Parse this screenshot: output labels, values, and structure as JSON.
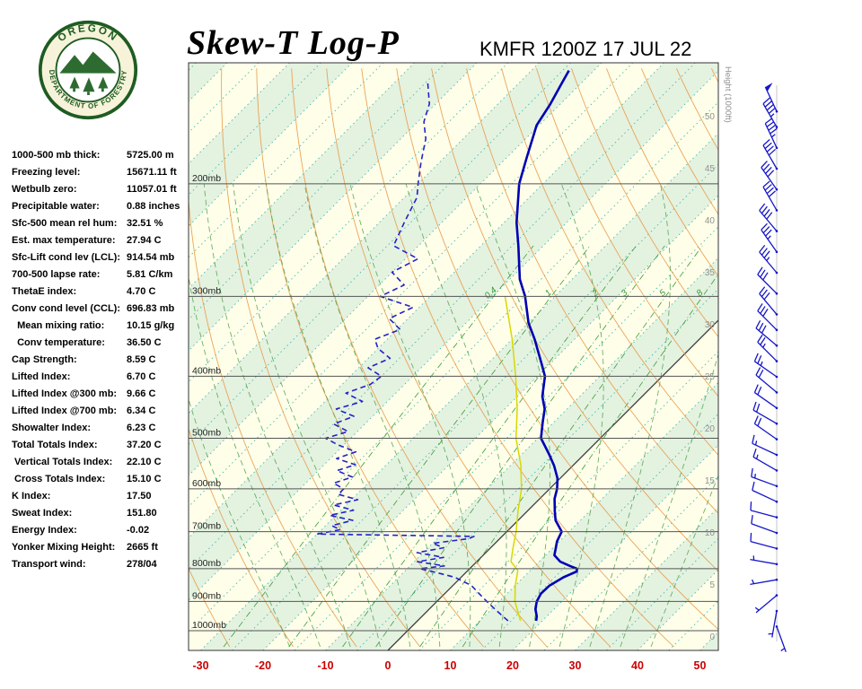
{
  "header": {
    "title": "Skew-T Log-P",
    "station_time": "KMFR 1200Z 17 JUL 22"
  },
  "logo": {
    "top_text": "OREGON",
    "bottom_text": "DEPARTMENT OF FORESTRY"
  },
  "stats": [
    {
      "label": "1000-500 mb thick:",
      "value": "5725.00 m"
    },
    {
      "label": "Freezing level:",
      "value": "15671.11 ft"
    },
    {
      "label": "Wetbulb zero:",
      "value": "11057.01 ft"
    },
    {
      "label": "Precipitable water:",
      "value": "0.88 inches"
    },
    {
      "label": "Sfc-500 mean rel hum:",
      "value": "32.51 %"
    },
    {
      "label": "Est. max temperature:",
      "value": "27.94 C"
    },
    {
      "label": "Sfc-Lift cond lev (LCL):",
      "value": "914.54 mb"
    },
    {
      "label": "700-500 lapse rate:",
      "value": "5.81 C/km"
    },
    {
      "label": "ThetaE index:",
      "value": "4.70 C"
    },
    {
      "label": "Conv cond level (CCL):",
      "value": "696.83 mb"
    },
    {
      "label": "  Mean mixing ratio:",
      "value": "10.15 g/kg"
    },
    {
      "label": "  Conv temperature:",
      "value": "36.50 C"
    },
    {
      "label": "Cap Strength:",
      "value": "8.59 C"
    },
    {
      "label": "Lifted Index:",
      "value": "6.70 C"
    },
    {
      "label": "Lifted Index @300 mb:",
      "value": "9.66 C"
    },
    {
      "label": "Lifted Index @700 mb:",
      "value": "6.34 C"
    },
    {
      "label": "Showalter Index:",
      "value": "6.23 C"
    },
    {
      "label": "Total Totals Index:",
      "value": "37.20 C"
    },
    {
      "label": " Vertical Totals Index:",
      "value": "22.10 C"
    },
    {
      "label": " Cross Totals Index:",
      "value": "15.10 C"
    },
    {
      "label": "K Index:",
      "value": "17.50"
    },
    {
      "label": "Sweat Index:",
      "value": "151.80"
    },
    {
      "label": "Energy Index:",
      "value": "-0.02"
    },
    {
      "label": "Yonker Mixing Height:",
      "value": "2665 ft"
    },
    {
      "label": "Transport wind:",
      "value": "278/04"
    }
  ],
  "chart_data": {
    "type": "skewt-log-p",
    "title": "Skew-T Log-P",
    "station": "KMFR",
    "valid": "1200Z 17 JUL 22",
    "x_axis": {
      "ticks": [
        -30,
        -20,
        -10,
        0,
        10,
        20,
        30,
        40,
        50
      ],
      "unit": "C"
    },
    "pressure_levels": [
      200,
      300,
      400,
      500,
      600,
      700,
      800,
      900,
      1000
    ],
    "pressure_label_suffix": "mb",
    "height_scale": {
      "title": "Height (1000ft)",
      "ticks": [
        0,
        5,
        10,
        15,
        20,
        25,
        30,
        35,
        40,
        45,
        50
      ]
    },
    "mixing_ratio_labels": [
      0.4,
      1,
      2,
      3,
      5,
      8
    ],
    "series": [
      {
        "name": "temperature",
        "color": "#0000b4",
        "width": 2.6,
        "dash": "",
        "points": [
          [
            965,
            19
          ],
          [
            950,
            18.4
          ],
          [
            925,
            17
          ],
          [
            900,
            16
          ],
          [
            875,
            15.4
          ],
          [
            850,
            15.5
          ],
          [
            825,
            16.4
          ],
          [
            808,
            17.6
          ],
          [
            800,
            17.2
          ],
          [
            792,
            15.6
          ],
          [
            780,
            13.4
          ],
          [
            762,
            11.4
          ],
          [
            745,
            10.6
          ],
          [
            725,
            9.6
          ],
          [
            700,
            8.8
          ],
          [
            672,
            6
          ],
          [
            650,
            4.4
          ],
          [
            622,
            2.4
          ],
          [
            600,
            1.2
          ],
          [
            578,
            -0.4
          ],
          [
            552,
            -3
          ],
          [
            530,
            -5.6
          ],
          [
            500,
            -9.5
          ],
          [
            472,
            -11.8
          ],
          [
            450,
            -13.6
          ],
          [
            430,
            -16
          ],
          [
            400,
            -18.8
          ],
          [
            382,
            -21.4
          ],
          [
            350,
            -26.4
          ],
          [
            330,
            -30
          ],
          [
            300,
            -34.8
          ],
          [
            282,
            -38.4
          ],
          [
            250,
            -44
          ],
          [
            230,
            -48
          ],
          [
            200,
            -53.8
          ],
          [
            182,
            -56.8
          ],
          [
            162,
            -60.4
          ],
          [
            150,
            -61.6
          ],
          [
            140,
            -63
          ],
          [
            133,
            -64
          ]
        ]
      },
      {
        "name": "dewpoint",
        "color": "#2222c8",
        "width": 1.6,
        "dash": "6,4",
        "points": [
          [
            965,
            14.5
          ],
          [
            950,
            13
          ],
          [
            925,
            10.5
          ],
          [
            900,
            8
          ],
          [
            875,
            5.5
          ],
          [
            850,
            3
          ],
          [
            825,
            -1
          ],
          [
            810,
            -5
          ],
          [
            800,
            -8
          ],
          [
            792,
            -4.5
          ],
          [
            780,
            -9.5
          ],
          [
            768,
            -6
          ],
          [
            755,
            -11
          ],
          [
            742,
            -7.5
          ],
          [
            730,
            -10
          ],
          [
            718,
            -5
          ],
          [
            712,
            -4.5
          ],
          [
            706,
            -30
          ],
          [
            695,
            -27
          ],
          [
            685,
            -29
          ],
          [
            672,
            -26.5
          ],
          [
            660,
            -31
          ],
          [
            648,
            -28
          ],
          [
            636,
            -32
          ],
          [
            624,
            -29
          ],
          [
            612,
            -33
          ],
          [
            600,
            -33
          ],
          [
            588,
            -35.5
          ],
          [
            575,
            -33.5
          ],
          [
            562,
            -37
          ],
          [
            550,
            -35
          ],
          [
            538,
            -39
          ],
          [
            525,
            -37
          ],
          [
            512,
            -41
          ],
          [
            500,
            -44
          ],
          [
            488,
            -41.5
          ],
          [
            475,
            -45
          ],
          [
            462,
            -43
          ],
          [
            450,
            -47
          ],
          [
            438,
            -44
          ],
          [
            425,
            -48
          ],
          [
            412,
            -45.5
          ],
          [
            400,
            -45
          ],
          [
            388,
            -48.5
          ],
          [
            375,
            -46.5
          ],
          [
            362,
            -50
          ],
          [
            350,
            -52
          ],
          [
            338,
            -49.5
          ],
          [
            325,
            -53
          ],
          [
            312,
            -51
          ],
          [
            300,
            -58
          ],
          [
            288,
            -56
          ],
          [
            275,
            -60
          ],
          [
            262,
            -58
          ],
          [
            250,
            -64
          ],
          [
            230,
            -66
          ],
          [
            210,
            -68
          ],
          [
            200,
            -70
          ],
          [
            185,
            -73
          ],
          [
            170,
            -76
          ],
          [
            160,
            -79
          ],
          [
            150,
            -81
          ],
          [
            138,
            -85
          ]
        ]
      },
      {
        "name": "wetbulb",
        "color": "#d8d800",
        "width": 1.5,
        "dash": "",
        "points": [
          [
            965,
            16.5
          ],
          [
            900,
            12.5
          ],
          [
            850,
            10
          ],
          [
            805,
            8
          ],
          [
            780,
            5.5
          ],
          [
            740,
            3.5
          ],
          [
            700,
            1.5
          ],
          [
            650,
            -1.5
          ],
          [
            600,
            -4.5
          ],
          [
            550,
            -8.5
          ],
          [
            500,
            -13.5
          ],
          [
            450,
            -18
          ],
          [
            400,
            -23.5
          ],
          [
            350,
            -30
          ],
          [
            300,
            -38
          ]
        ]
      }
    ],
    "winds": [
      [
        1,
        160,
        4
      ],
      [
        2.5,
        190,
        4
      ],
      [
        4,
        230,
        5
      ],
      [
        5.5,
        260,
        5
      ],
      [
        7,
        280,
        5
      ],
      [
        8.5,
        285,
        8
      ],
      [
        10,
        290,
        10
      ],
      [
        11.5,
        285,
        10
      ],
      [
        13,
        295,
        12
      ],
      [
        14.5,
        290,
        15
      ],
      [
        16,
        300,
        15
      ],
      [
        17.5,
        295,
        15
      ],
      [
        19,
        305,
        18
      ],
      [
        20.5,
        300,
        20
      ],
      [
        22,
        305,
        20
      ],
      [
        23.5,
        310,
        22
      ],
      [
        25,
        305,
        25
      ],
      [
        26.5,
        315,
        25
      ],
      [
        28,
        310,
        28
      ],
      [
        29.5,
        315,
        30
      ],
      [
        31,
        320,
        30
      ],
      [
        33,
        315,
        32
      ],
      [
        35,
        320,
        35
      ],
      [
        37,
        325,
        35
      ],
      [
        39,
        320,
        38
      ],
      [
        41,
        330,
        40
      ],
      [
        43,
        325,
        40
      ],
      [
        45,
        330,
        42
      ],
      [
        47,
        335,
        45
      ],
      [
        49,
        330,
        45
      ],
      [
        50.5,
        335,
        48
      ]
    ],
    "colors": {
      "background": "#fefee9",
      "band": "#e4f2e0",
      "isotherm": "#2fb3ab",
      "zero_isotherm": "#3a3a3a",
      "dry_adiabat": "#e8973f",
      "moist_adiabat": "#4aa04a",
      "mixing_ratio": "#3a9a3a",
      "pressure_line": "#555555",
      "axis_label": "#cc0000",
      "height_label": "#909090",
      "wind_barb": "#1616c8",
      "temperature": "#0000b4",
      "dewpoint": "#2222c8",
      "wetbulb": "#d8d800"
    }
  }
}
